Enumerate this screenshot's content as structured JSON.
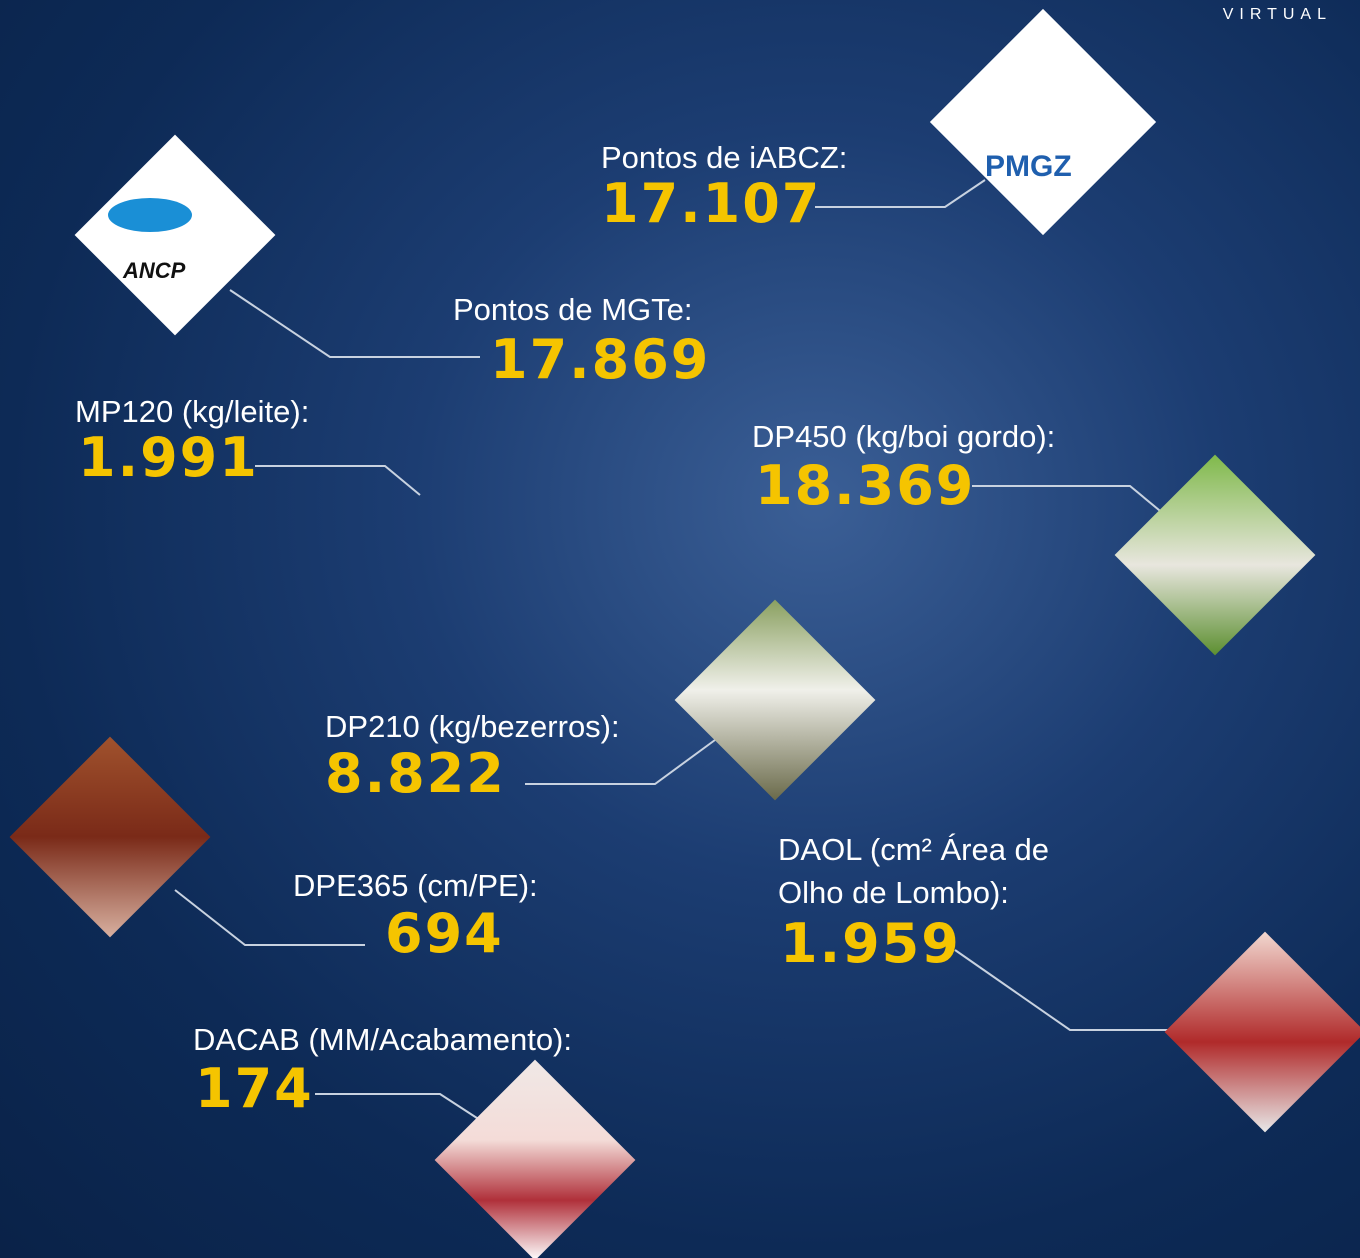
{
  "header": {
    "brand": "VIRTUAL"
  },
  "logos": [
    {
      "label": "PMGZ"
    },
    {
      "label": "ANCP"
    }
  ],
  "items": [
    {
      "label": "Pontos de iABCZ:",
      "value": "17.107"
    },
    {
      "label": "Pontos de MGTe:",
      "value": "17.869"
    },
    {
      "label": "MP120 (kg/leite):",
      "value": "1.991"
    },
    {
      "label": "DP450 (kg/boi gordo):",
      "value": "18.369"
    },
    {
      "label": "DP210 (kg/bezerros):",
      "value": "8.822"
    },
    {
      "label": "DPE365 (cm/PE):",
      "value": "694"
    },
    {
      "label": "DAOL (cm² Área de",
      "label2": "Olho de Lombo):",
      "value": "1.959"
    },
    {
      "label": "DACAB (MM/Acabamento):",
      "value": "174"
    }
  ]
}
